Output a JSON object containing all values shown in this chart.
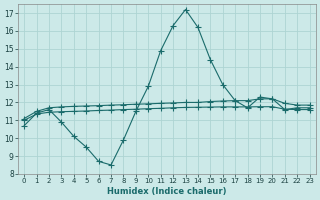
{
  "xlabel": "Humidex (Indice chaleur)",
  "bg_color": "#cce9e8",
  "grid_color": "#aed4d3",
  "line_color": "#1a6b6b",
  "ylim": [
    8,
    17.5
  ],
  "xlim": [
    -0.5,
    23.5
  ],
  "yticks": [
    8,
    9,
    10,
    11,
    12,
    13,
    14,
    15,
    16,
    17
  ],
  "xticks": [
    0,
    1,
    2,
    3,
    4,
    5,
    6,
    7,
    8,
    9,
    10,
    11,
    12,
    13,
    14,
    15,
    16,
    17,
    18,
    19,
    20,
    21,
    22,
    23
  ],
  "line1_x": [
    0,
    1,
    2,
    3,
    4,
    5,
    6,
    7,
    8,
    9,
    10,
    11,
    12,
    13,
    14,
    15,
    16,
    17,
    18,
    19,
    20,
    21,
    22,
    23
  ],
  "line1_y": [
    10.7,
    11.4,
    11.6,
    10.9,
    10.1,
    9.5,
    8.7,
    8.5,
    9.9,
    11.5,
    12.9,
    14.9,
    16.3,
    17.2,
    16.2,
    14.4,
    13.0,
    12.1,
    11.7,
    12.3,
    12.2,
    11.6,
    11.7,
    11.7
  ],
  "line2_x": [
    0,
    1,
    2,
    3,
    4,
    5,
    6,
    7,
    8,
    9,
    10,
    11,
    12,
    13,
    14,
    15,
    16,
    17,
    18,
    19,
    20,
    21,
    22,
    23
  ],
  "line2_y": [
    11.1,
    11.5,
    11.7,
    11.75,
    11.78,
    11.8,
    11.82,
    11.85,
    11.87,
    11.9,
    11.92,
    11.95,
    11.97,
    12.0,
    12.0,
    12.05,
    12.08,
    12.1,
    12.1,
    12.2,
    12.2,
    11.95,
    11.85,
    11.85
  ],
  "line3_x": [
    0,
    1,
    2,
    3,
    4,
    5,
    6,
    7,
    8,
    9,
    10,
    11,
    12,
    13,
    14,
    15,
    16,
    17,
    18,
    19,
    20,
    21,
    22,
    23
  ],
  "line3_y": [
    11.0,
    11.35,
    11.45,
    11.48,
    11.5,
    11.52,
    11.55,
    11.57,
    11.6,
    11.62,
    11.65,
    11.67,
    11.7,
    11.72,
    11.73,
    11.74,
    11.75,
    11.75,
    11.75,
    11.76,
    11.76,
    11.62,
    11.6,
    11.6
  ]
}
